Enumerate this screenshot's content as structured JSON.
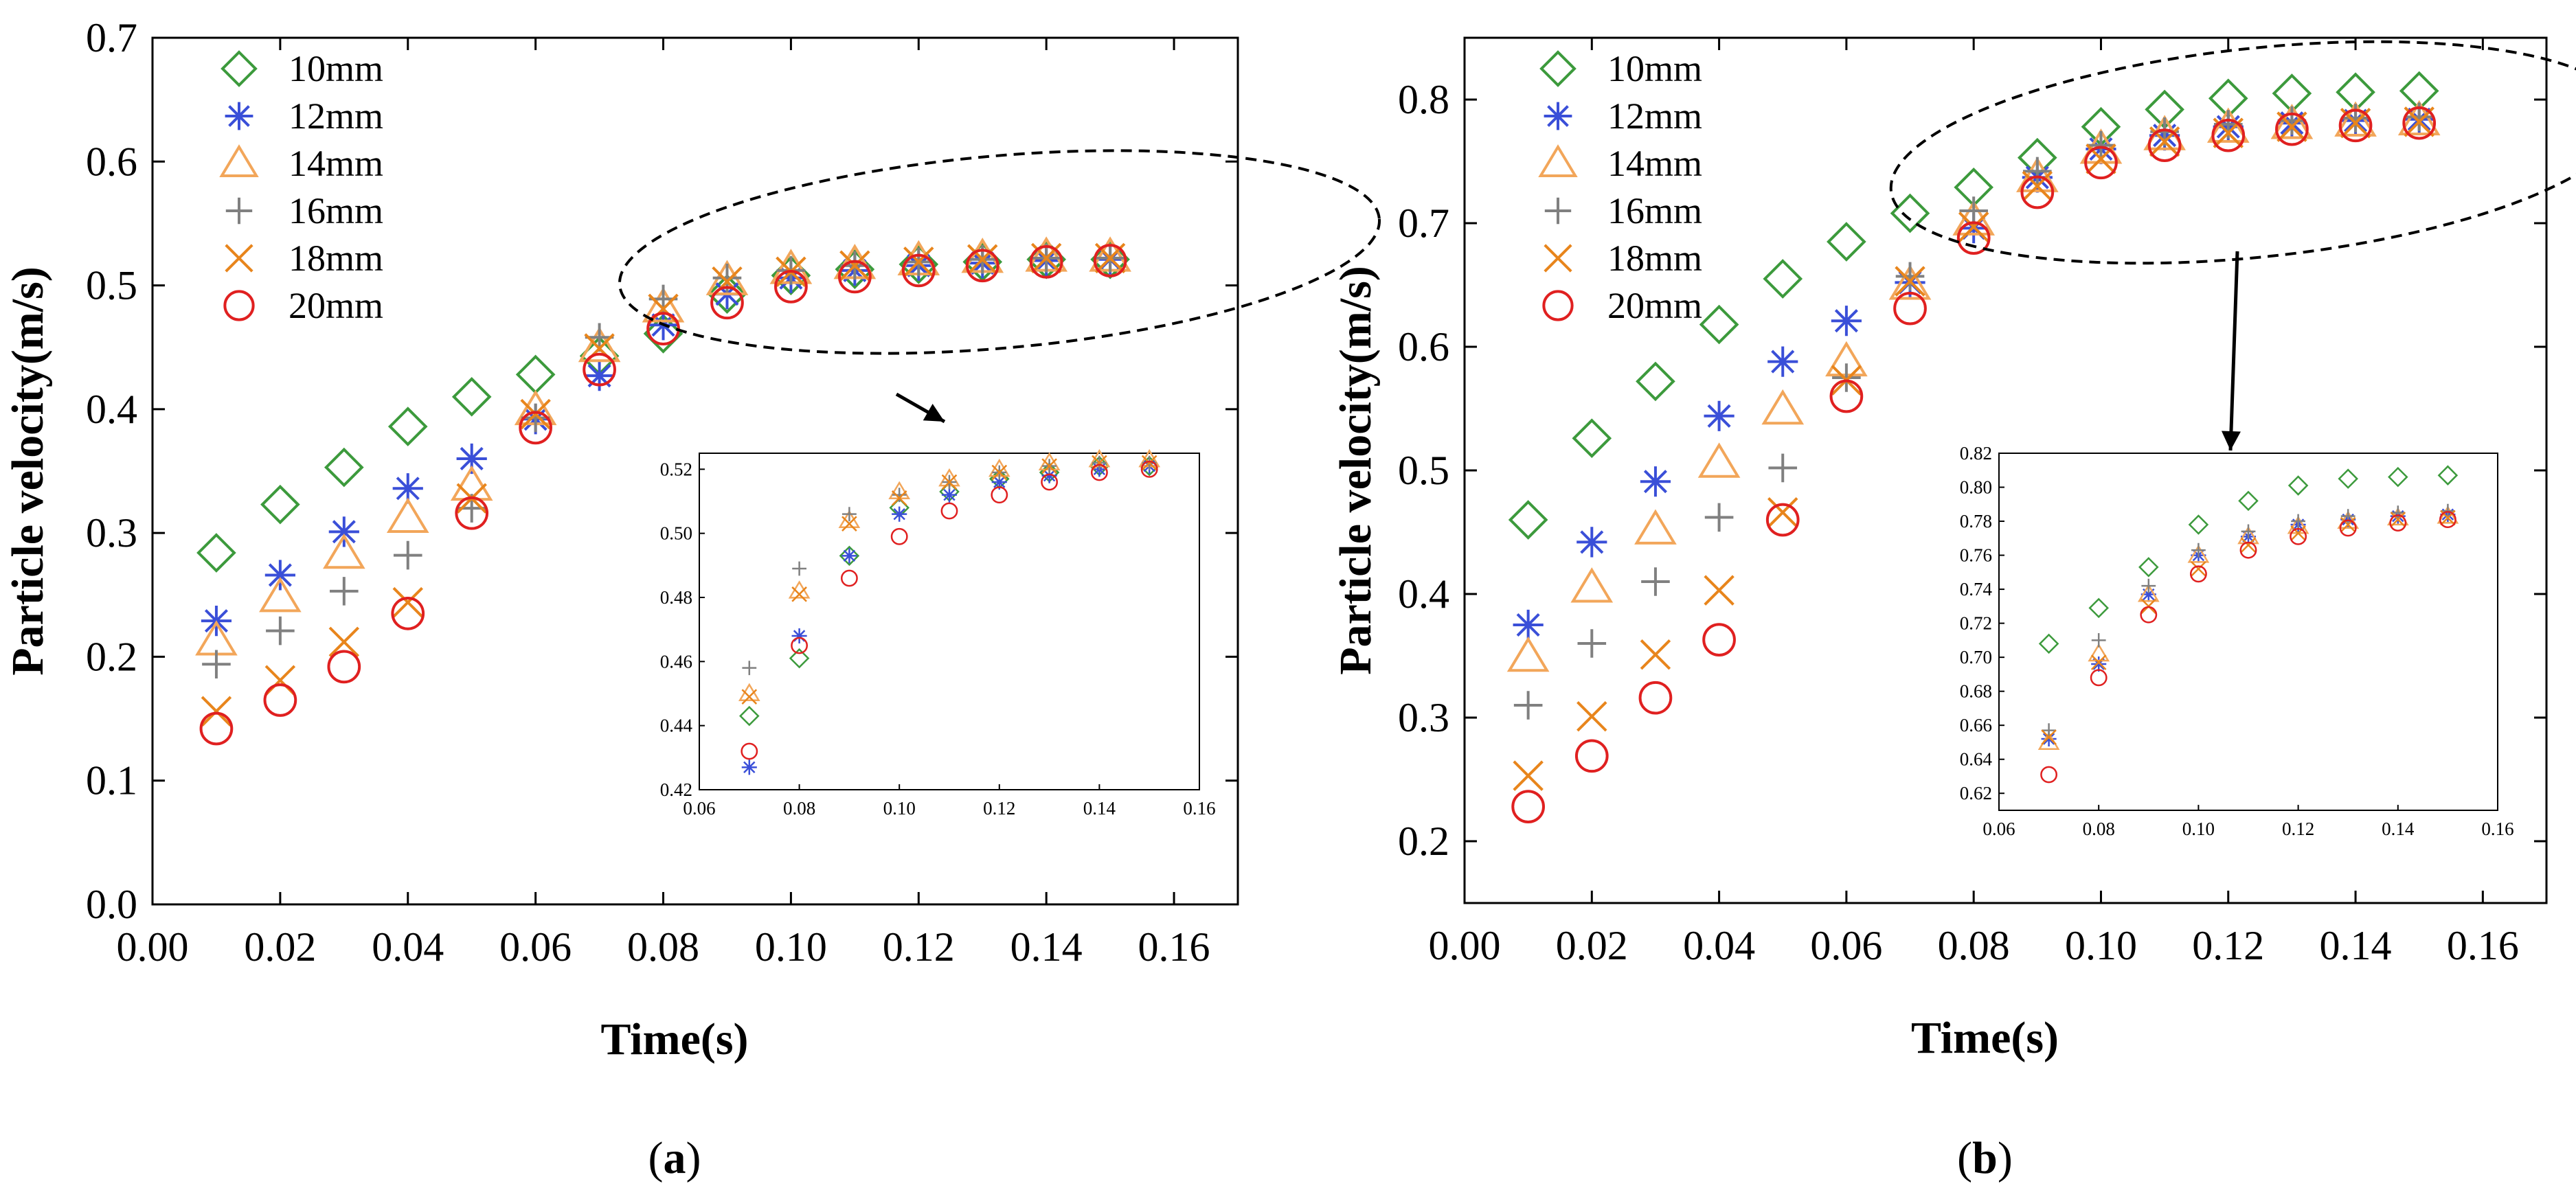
{
  "chart_data": [
    {
      "type": "scatter",
      "panel_label": "a",
      "xlabel": "Time(s)",
      "ylabel": "Particle velocity(m/s)",
      "xlim": [
        0.0,
        0.17
      ],
      "ylim": [
        0.0,
        0.7
      ],
      "x_ticks": [
        "0.00",
        "0.02",
        "0.04",
        "0.06",
        "0.08",
        "0.10",
        "0.12",
        "0.14",
        "0.16"
      ],
      "y_ticks": [
        "0.0",
        "0.1",
        "0.2",
        "0.3",
        "0.4",
        "0.5",
        "0.6",
        "0.7"
      ],
      "legend_placement": "top-left",
      "x": [
        0.01,
        0.02,
        0.03,
        0.04,
        0.05,
        0.06,
        0.07,
        0.08,
        0.09,
        0.1,
        0.11,
        0.12,
        0.13,
        0.14,
        0.15
      ],
      "series": [
        {
          "name": "10mm",
          "marker": "diamond",
          "color": "#3c9a3c",
          "values": [
            0.284,
            0.323,
            0.353,
            0.386,
            0.41,
            0.428,
            0.443,
            0.461,
            0.493,
            0.508,
            0.513,
            0.517,
            0.519,
            0.521,
            0.521
          ]
        },
        {
          "name": "12mm",
          "marker": "asterisk",
          "color": "#3a4fd8",
          "values": [
            0.229,
            0.266,
            0.301,
            0.336,
            0.36,
            0.392,
            0.427,
            0.468,
            0.493,
            0.506,
            0.512,
            0.516,
            0.518,
            0.52,
            0.521
          ]
        },
        {
          "name": "14mm",
          "marker": "triangle",
          "color": "#f2a65a",
          "values": [
            0.213,
            0.248,
            0.283,
            0.312,
            0.338,
            0.399,
            0.45,
            0.482,
            0.504,
            0.513,
            0.517,
            0.52,
            0.522,
            0.523,
            0.523
          ]
        },
        {
          "name": "16mm",
          "marker": "plus",
          "color": "#808080",
          "values": [
            0.194,
            0.221,
            0.253,
            0.282,
            0.32,
            0.393,
            0.458,
            0.489,
            0.506,
            0.512,
            0.516,
            0.519,
            0.521,
            0.522,
            0.522
          ]
        },
        {
          "name": "18mm",
          "marker": "x",
          "color": "#e8851c",
          "values": [
            0.156,
            0.181,
            0.212,
            0.244,
            0.328,
            0.396,
            0.449,
            0.481,
            0.503,
            0.511,
            0.516,
            0.519,
            0.521,
            0.522,
            0.522
          ]
        },
        {
          "name": "20mm",
          "marker": "circle",
          "color": "#e02020",
          "values": [
            0.142,
            0.165,
            0.192,
            0.235,
            0.316,
            0.385,
            0.432,
            0.465,
            0.486,
            0.499,
            0.507,
            0.512,
            0.516,
            0.519,
            0.52
          ]
        }
      ],
      "inset": {
        "xlim": [
          0.06,
          0.16
        ],
        "ylim": [
          0.42,
          0.525
        ],
        "x_ticks": [
          "0.06",
          "0.08",
          "0.10",
          "0.12",
          "0.14",
          "0.16"
        ],
        "y_ticks": [
          "0.42",
          "0.44",
          "0.46",
          "0.48",
          "0.50",
          "0.52"
        ],
        "x_range_shown": [
          0.07,
          0.15
        ]
      }
    },
    {
      "type": "scatter",
      "panel_label": "b",
      "xlabel": "Time(s)",
      "ylabel": "Particle velocity(m/s)",
      "xlim": [
        0.0,
        0.17
      ],
      "ylim": [
        0.15,
        0.85
      ],
      "x_ticks": [
        "0.00",
        "0.02",
        "0.04",
        "0.06",
        "0.08",
        "0.10",
        "0.12",
        "0.14",
        "0.16"
      ],
      "y_ticks": [
        "0.2",
        "0.3",
        "0.4",
        "0.5",
        "0.6",
        "0.7",
        "0.8"
      ],
      "legend_placement": "top-left",
      "x": [
        0.01,
        0.02,
        0.03,
        0.04,
        0.05,
        0.06,
        0.07,
        0.08,
        0.09,
        0.1,
        0.11,
        0.12,
        0.13,
        0.14,
        0.15
      ],
      "series": [
        {
          "name": "10mm",
          "marker": "diamond",
          "color": "#3c9a3c",
          "values": [
            0.46,
            0.526,
            0.572,
            0.618,
            0.655,
            0.685,
            0.708,
            0.729,
            0.753,
            0.778,
            0.792,
            0.801,
            0.805,
            0.806,
            0.807
          ]
        },
        {
          "name": "12mm",
          "marker": "asterisk",
          "color": "#3a4fd8",
          "values": [
            0.375,
            0.442,
            0.491,
            0.544,
            0.588,
            0.621,
            0.652,
            0.696,
            0.737,
            0.76,
            0.771,
            0.778,
            0.781,
            0.783,
            0.784
          ]
        },
        {
          "name": "14mm",
          "marker": "triangle",
          "color": "#f2a65a",
          "values": [
            0.349,
            0.405,
            0.452,
            0.506,
            0.549,
            0.588,
            0.65,
            0.702,
            0.737,
            0.76,
            0.771,
            0.777,
            0.78,
            0.782,
            0.783
          ]
        },
        {
          "name": "16mm",
          "marker": "plus",
          "color": "#808080",
          "values": [
            0.31,
            0.36,
            0.41,
            0.462,
            0.502,
            0.575,
            0.657,
            0.71,
            0.742,
            0.763,
            0.774,
            0.78,
            0.783,
            0.785,
            0.786
          ]
        },
        {
          "name": "18mm",
          "marker": "x",
          "color": "#e8851c",
          "values": [
            0.253,
            0.301,
            0.351,
            0.403,
            0.466,
            0.573,
            0.653,
            0.697,
            0.73,
            0.752,
            0.766,
            0.773,
            0.778,
            0.781,
            0.782
          ]
        },
        {
          "name": "20mm",
          "marker": "circle",
          "color": "#e02020",
          "values": [
            0.228,
            0.269,
            0.316,
            0.363,
            0.46,
            0.56,
            0.631,
            0.688,
            0.725,
            0.749,
            0.763,
            0.771,
            0.776,
            0.779,
            0.781
          ]
        }
      ],
      "inset": {
        "xlim": [
          0.06,
          0.16
        ],
        "ylim": [
          0.61,
          0.82
        ],
        "x_ticks": [
          "0.06",
          "0.08",
          "0.10",
          "0.12",
          "0.14",
          "0.16"
        ],
        "y_ticks": [
          "0.62",
          "0.64",
          "0.66",
          "0.68",
          "0.70",
          "0.72",
          "0.74",
          "0.76",
          "0.78",
          "0.80",
          "0.82"
        ],
        "x_range_shown": [
          0.07,
          0.15
        ]
      }
    }
  ]
}
